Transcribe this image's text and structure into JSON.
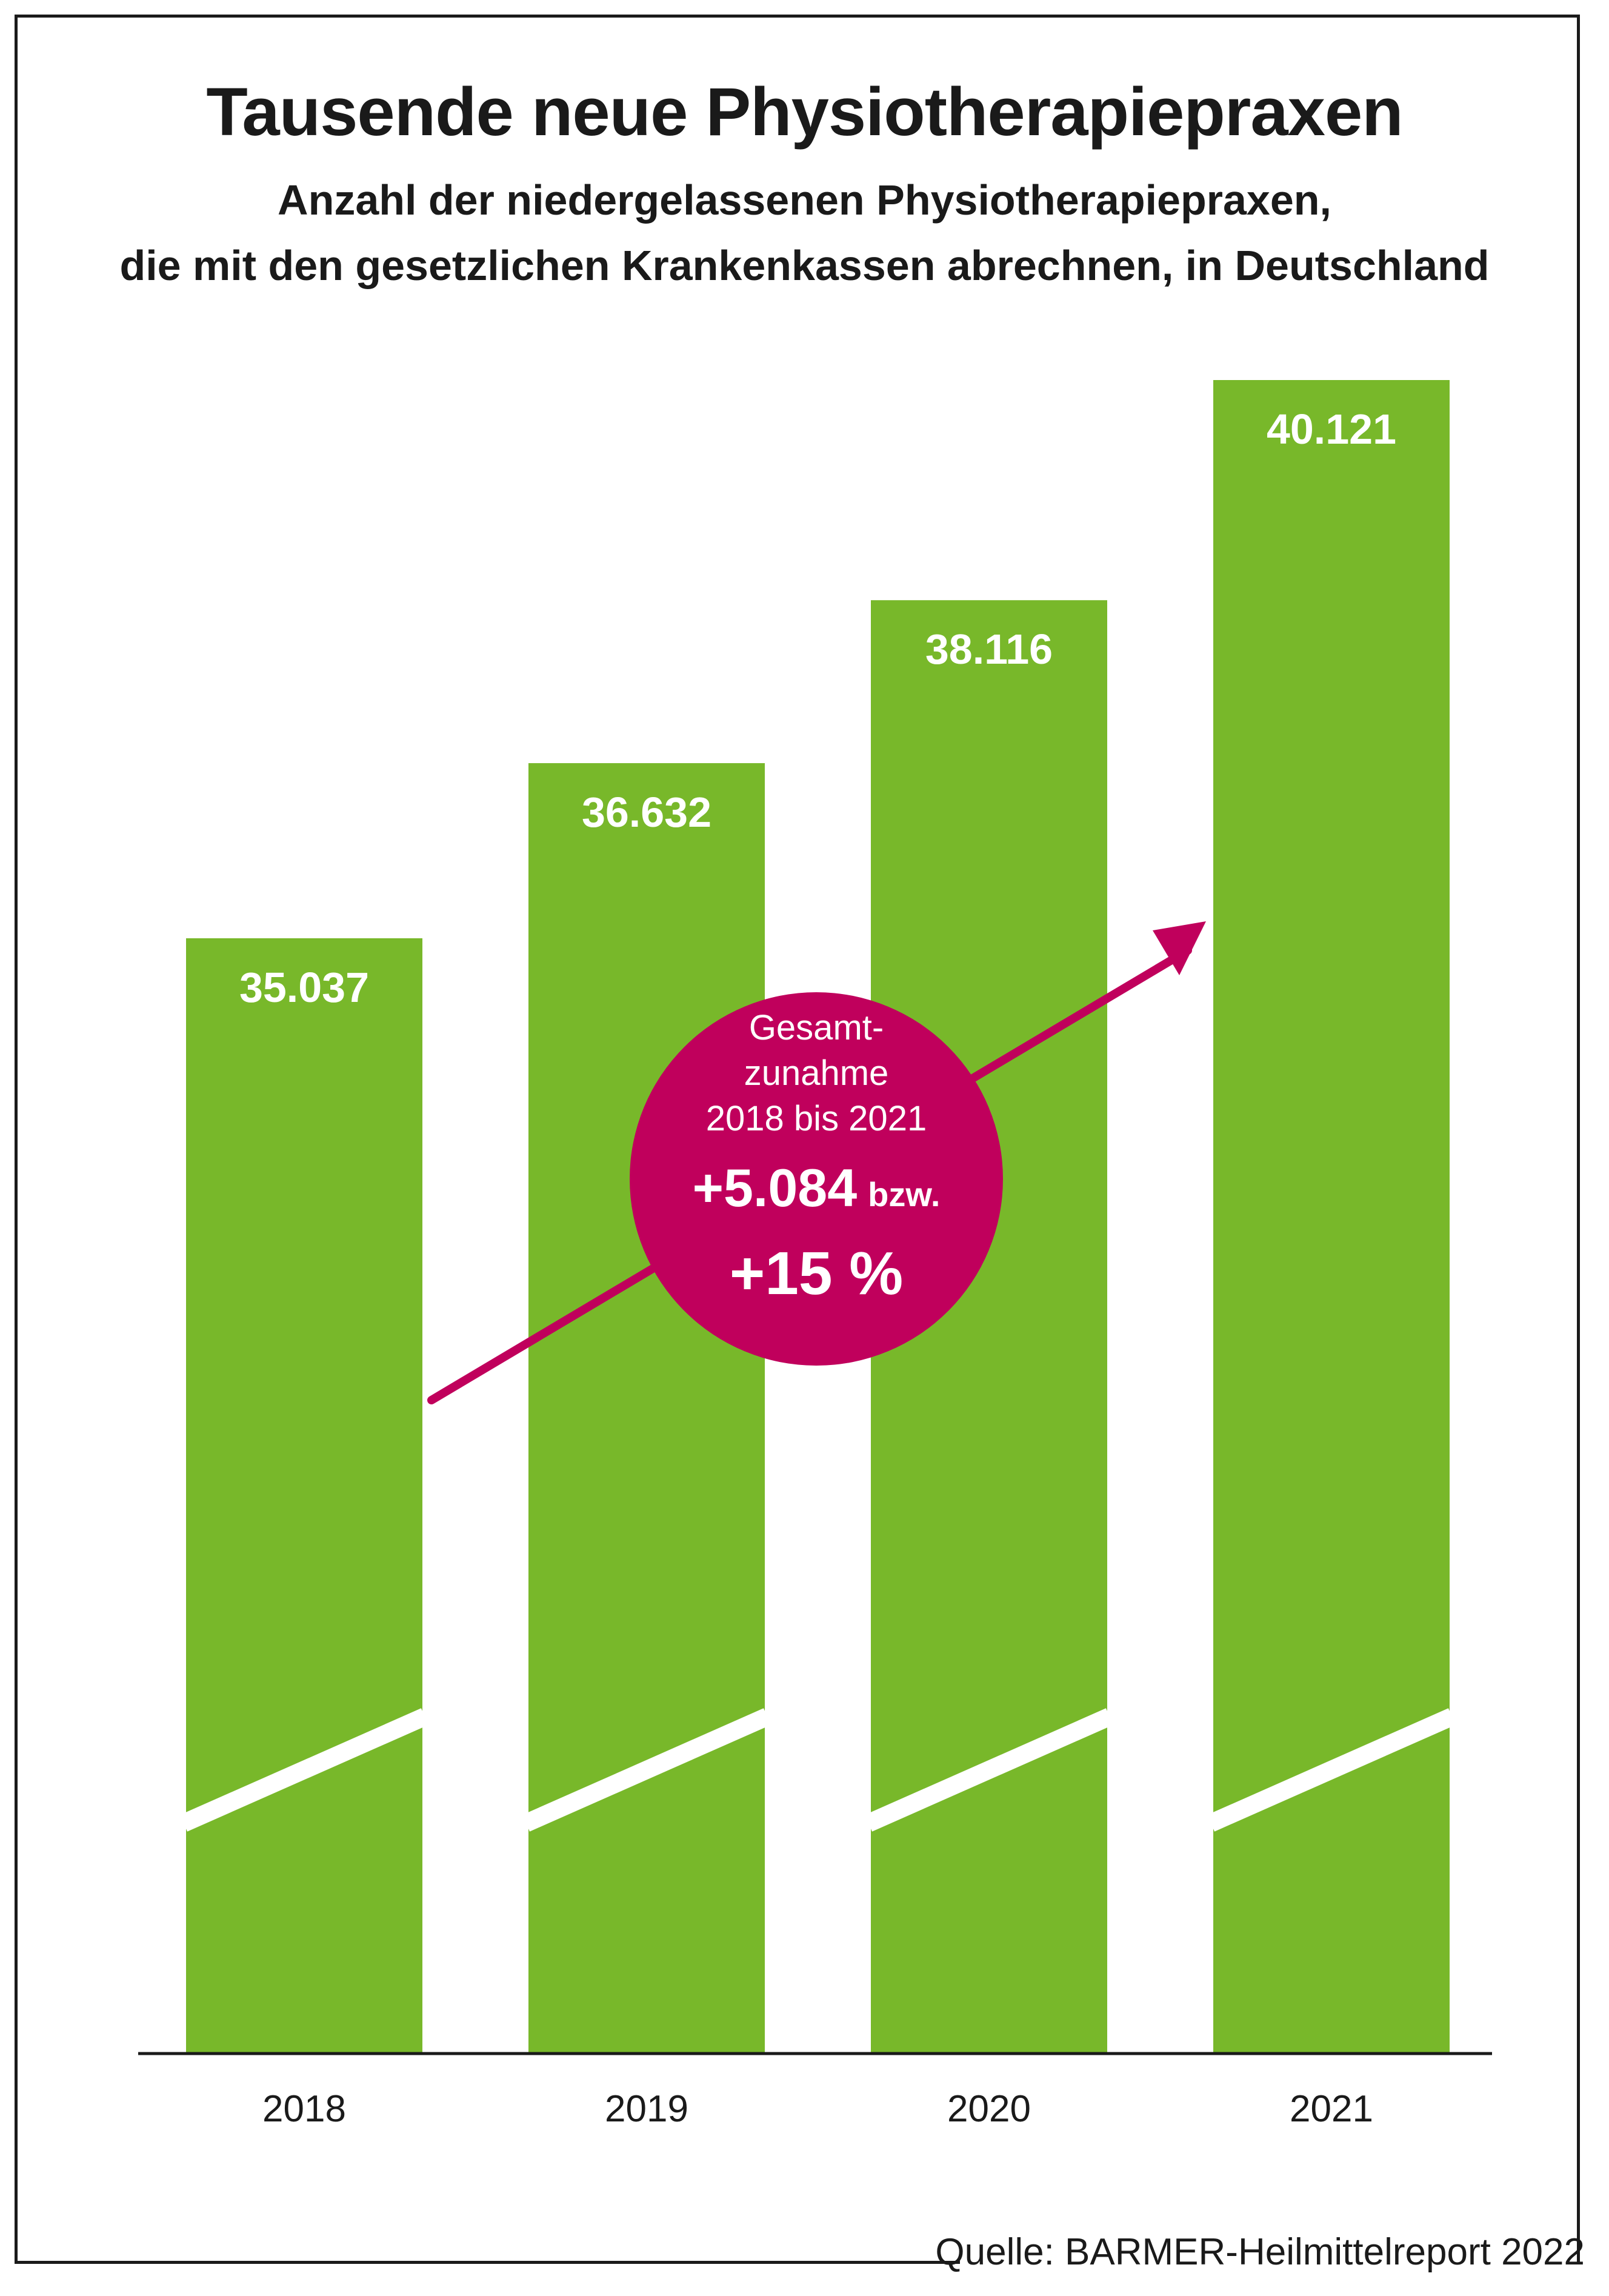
{
  "title": "Tausende neue Physiotherapiepraxen",
  "subtitle_line1": "Anzahl der niedergelassenen Physiotherapiepraxen,",
  "subtitle_line2": "die mit den gesetzlichen Krankenkassen abrechnen, in Deutschland",
  "source": "Quelle: BARMER-Heilmittelreport 2022",
  "colors": {
    "bar": "#78b82a",
    "highlight": "#c0005c",
    "text": "#1a1a1a",
    "bar_label": "#ffffff"
  },
  "chart_data": {
    "type": "bar",
    "categories": [
      "2018",
      "2019",
      "2020",
      "2021"
    ],
    "values": [
      35037,
      36632,
      38116,
      40121
    ],
    "value_labels": [
      "35.037",
      "36.632",
      "38.116",
      "40.121"
    ],
    "axis_break": true,
    "trend_arrow": true
  },
  "callout": {
    "line1": "Gesamt-",
    "line2": "zunahme",
    "line3": "2018 bis 2021",
    "line4_main": "+5.084",
    "line4_suffix": "bzw.",
    "line5": "+15 %"
  }
}
